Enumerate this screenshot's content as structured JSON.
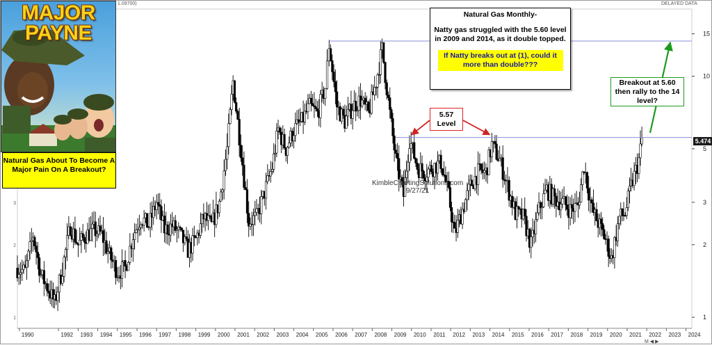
{
  "header": {
    "top_value": "1.09700)",
    "delayed_label": "DELAYED DATA"
  },
  "poster": {
    "title": "MAJOR PAYNE",
    "caption": "Natural Gas About To Become A Major Pain On A Breakout?"
  },
  "annotations": {
    "note_title": "Natural Gas Monthly-",
    "note_body": "Natty gas struggled with the 5.60 level in 2009 and 2014, as it double topped.",
    "note_question": "If Natty breaks out at (1), could it more than double???",
    "level_label": "5.57 Level",
    "breakout_label": "Breakout at 5.60 then rally to the 14 level?",
    "watermark": "KimbleChartingSolutions.com",
    "watermark_date": "9/27/21",
    "price_tag": "5.474",
    "scroll_controls": "M ◀ ▶"
  },
  "colors": {
    "resistance_line": "#8a8fd8",
    "level_arrow": "#d22222",
    "breakout_arrow": "#1d9a1d",
    "highlight": "#ffff00",
    "candle_up": "#ffffff",
    "candle_down": "#000000"
  },
  "chart_data": {
    "type": "candlestick",
    "title": "Natural Gas Monthly-",
    "y_scale": "log",
    "ylim": [
      0.9,
      19
    ],
    "y_ticks": [
      1,
      2,
      3,
      5,
      10,
      15
    ],
    "x_ticks": [
      "1990",
      "1992",
      "1993",
      "1994",
      "1995",
      "1996",
      "1997",
      "1998",
      "1999",
      "2000",
      "2001",
      "2002",
      "2003",
      "2004",
      "2005",
      "2006",
      "2007",
      "2008",
      "2009",
      "2010",
      "2011",
      "2012",
      "2013",
      "2014",
      "2015",
      "2016",
      "2017",
      "2018",
      "2019",
      "2020",
      "2021",
      "2022",
      "2023",
      "2024"
    ],
    "x_range": [
      1989.9,
      2024.3
    ],
    "resistance_lines": [
      {
        "value": 14.0,
        "from": 2005.8,
        "to": 2024.3
      },
      {
        "value": 5.57,
        "from": 2009.2,
        "to": 2024.3
      }
    ],
    "last_price": 5.474,
    "annotation_date": "9/27/21",
    "series": [
      {
        "values": [
          [
            1989.9,
            1.6
          ],
          [
            1990.3,
            1.55
          ],
          [
            1990.7,
            2.2
          ],
          [
            1991.1,
            1.5
          ],
          [
            1991.5,
            1.3
          ],
          [
            1991.8,
            1.15
          ],
          [
            1992.2,
            1.6
          ],
          [
            1992.6,
            2.4
          ],
          [
            1993.0,
            2.0
          ],
          [
            1993.4,
            2.2
          ],
          [
            1993.8,
            2.3
          ],
          [
            1994.2,
            2.2
          ],
          [
            1994.6,
            1.8
          ],
          [
            1995.0,
            1.55
          ],
          [
            1995.4,
            1.6
          ],
          [
            1995.8,
            2.2
          ],
          [
            1996.2,
            2.6
          ],
          [
            1996.6,
            2.4
          ],
          [
            1997.0,
            3.0
          ],
          [
            1997.4,
            2.3
          ],
          [
            1997.8,
            2.4
          ],
          [
            1998.2,
            2.2
          ],
          [
            1998.6,
            1.9
          ],
          [
            1999.0,
            2.1
          ],
          [
            1999.4,
            2.6
          ],
          [
            1999.8,
            2.4
          ],
          [
            2000.2,
            3.0
          ],
          [
            2000.6,
            5.0
          ],
          [
            2000.9,
            9.5
          ],
          [
            2001.3,
            5.0
          ],
          [
            2001.7,
            2.5
          ],
          [
            2002.1,
            2.6
          ],
          [
            2002.5,
            3.3
          ],
          [
            2002.9,
            4.2
          ],
          [
            2003.2,
            6.0
          ],
          [
            2003.6,
            5.0
          ],
          [
            2004.0,
            6.0
          ],
          [
            2004.4,
            6.5
          ],
          [
            2004.8,
            7.5
          ],
          [
            2005.2,
            7.0
          ],
          [
            2005.6,
            9.0
          ],
          [
            2005.8,
            13.5
          ],
          [
            2006.2,
            7.5
          ],
          [
            2006.6,
            6.5
          ],
          [
            2007.0,
            7.5
          ],
          [
            2007.4,
            8.0
          ],
          [
            2007.8,
            7.0
          ],
          [
            2008.2,
            9.5
          ],
          [
            2008.5,
            13.0
          ],
          [
            2008.9,
            7.0
          ],
          [
            2009.2,
            4.5
          ],
          [
            2009.6,
            3.2
          ],
          [
            2009.9,
            5.5
          ],
          [
            2010.3,
            4.2
          ],
          [
            2010.7,
            4.0
          ],
          [
            2011.1,
            4.2
          ],
          [
            2011.5,
            4.4
          ],
          [
            2011.9,
            3.2
          ],
          [
            2012.2,
            2.2
          ],
          [
            2012.6,
            2.8
          ],
          [
            2013.0,
            3.5
          ],
          [
            2013.4,
            4.0
          ],
          [
            2013.8,
            4.0
          ],
          [
            2014.1,
            5.2
          ],
          [
            2014.5,
            4.5
          ],
          [
            2014.9,
            3.5
          ],
          [
            2015.3,
            2.7
          ],
          [
            2015.7,
            2.6
          ],
          [
            2016.1,
            2.0
          ],
          [
            2016.5,
            2.8
          ],
          [
            2016.9,
            3.4
          ],
          [
            2017.3,
            3.1
          ],
          [
            2017.7,
            3.0
          ],
          [
            2018.1,
            2.8
          ],
          [
            2018.5,
            2.9
          ],
          [
            2018.8,
            4.3
          ],
          [
            2019.2,
            2.8
          ],
          [
            2019.6,
            2.4
          ],
          [
            2019.9,
            2.1
          ],
          [
            2020.2,
            1.75
          ],
          [
            2020.6,
            2.6
          ],
          [
            2020.9,
            2.7
          ],
          [
            2021.2,
            3.5
          ],
          [
            2021.6,
            4.5
          ],
          [
            2021.75,
            5.47
          ]
        ]
      }
    ]
  }
}
